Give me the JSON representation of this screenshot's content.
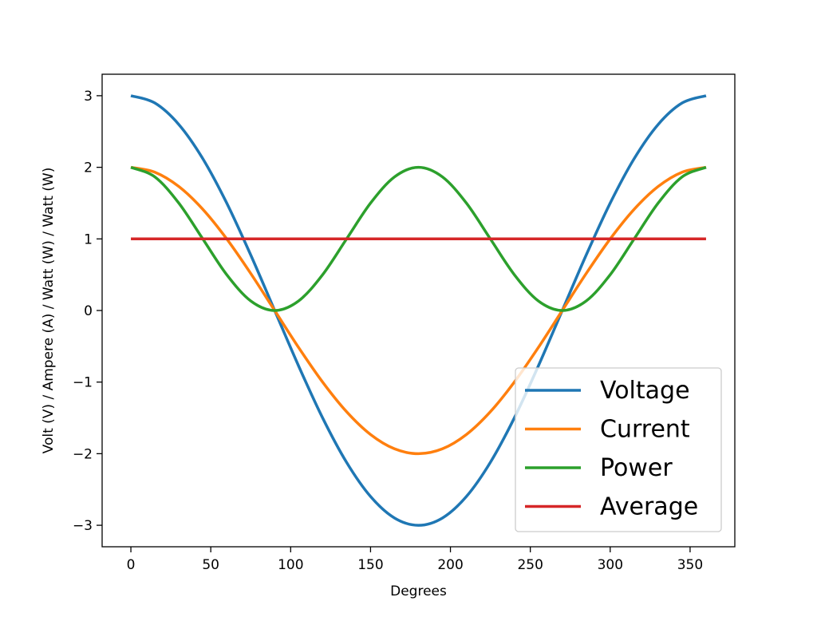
{
  "chart_data": {
    "type": "line",
    "title": "",
    "xlabel": "Degrees",
    "ylabel": "Volt (V) / Ampere (A) / Watt (W) / Watt (W)",
    "xlim": [
      -18,
      378
    ],
    "ylim": [
      -3.3,
      3.3
    ],
    "xticks": [
      0,
      50,
      100,
      150,
      200,
      250,
      300,
      350
    ],
    "xtick_labels": [
      "0",
      "50",
      "100",
      "150",
      "200",
      "250",
      "300",
      "350"
    ],
    "yticks": [
      -3,
      -2,
      -1,
      0,
      1,
      2,
      3
    ],
    "ytick_labels": [
      "−3",
      "−2",
      "−1",
      "0",
      "1",
      "2",
      "3"
    ],
    "grid": false,
    "legend_position": "lower-right",
    "x": [
      0,
      15,
      30,
      45,
      60,
      75,
      90,
      105,
      120,
      135,
      150,
      165,
      180,
      195,
      210,
      225,
      240,
      255,
      270,
      285,
      300,
      315,
      330,
      345,
      360
    ],
    "series": [
      {
        "name": "Voltage",
        "color": "#1f77b4",
        "values": [
          3.0,
          2.898,
          2.598,
          2.121,
          1.5,
          0.776,
          0.0,
          -0.776,
          -1.5,
          -2.121,
          -2.598,
          -2.898,
          -3.0,
          -2.898,
          -2.598,
          -2.121,
          -1.5,
          -0.776,
          0.0,
          0.776,
          1.5,
          2.121,
          2.598,
          2.898,
          3.0
        ]
      },
      {
        "name": "Current",
        "color": "#ff7f0e",
        "values": [
          2.0,
          1.932,
          1.732,
          1.414,
          1.0,
          0.518,
          0.0,
          -0.518,
          -1.0,
          -1.414,
          -1.732,
          -1.932,
          -2.0,
          -1.932,
          -1.732,
          -1.414,
          -1.0,
          -0.518,
          0.0,
          0.518,
          1.0,
          1.414,
          1.732,
          1.932,
          2.0
        ]
      },
      {
        "name": "Power",
        "color": "#2ca02c",
        "values": [
          2.0,
          1.866,
          1.5,
          1.0,
          0.5,
          0.134,
          0.0,
          0.134,
          0.5,
          1.0,
          1.5,
          1.866,
          2.0,
          1.866,
          1.5,
          1.0,
          0.5,
          0.134,
          0.0,
          0.134,
          0.5,
          1.0,
          1.5,
          1.866,
          2.0
        ]
      },
      {
        "name": "Average",
        "color": "#d62728",
        "values": [
          1.0,
          1.0,
          1.0,
          1.0,
          1.0,
          1.0,
          1.0,
          1.0,
          1.0,
          1.0,
          1.0,
          1.0,
          1.0,
          1.0,
          1.0,
          1.0,
          1.0,
          1.0,
          1.0,
          1.0,
          1.0,
          1.0,
          1.0,
          1.0,
          1.0
        ]
      }
    ]
  }
}
